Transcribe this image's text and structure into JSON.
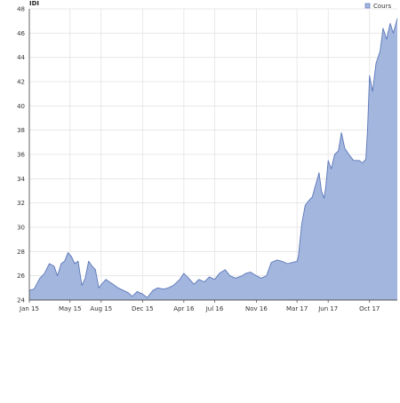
{
  "chart_data": {
    "type": "area",
    "title": "IDI",
    "legend": {
      "position": "top-right",
      "entries": [
        "Cours"
      ]
    },
    "grid": true,
    "colors": {
      "series": "#5b77b8",
      "fill": "#a3b6de",
      "grid": "#e3e3e3",
      "axis": "#555555"
    },
    "xlim": [
      "2015-01-01",
      "2017-12-22"
    ],
    "ylim": [
      24,
      48
    ],
    "x_ticks": [
      "2015-01-01",
      "2015-05-01",
      "2015-08-01",
      "2015-12-01",
      "2016-04-01",
      "2016-07-01",
      "2016-11-01",
      "2017-03-01",
      "2017-06-01",
      "2017-10-01"
    ],
    "x_tick_labels": [
      "Jan 15",
      "May 15",
      "Aug 15",
      "Dec 15",
      "Apr 16",
      "Jul 16",
      "Nov 16",
      "Mar 17",
      "Jun 17",
      "Oct 17"
    ],
    "y_ticks": [
      24,
      26,
      28,
      30,
      32,
      34,
      36,
      38,
      40,
      42,
      44,
      46,
      48
    ],
    "y_tick_labels": [
      "24",
      "26",
      "28",
      "30",
      "32",
      "34",
      "36",
      "38",
      "40",
      "42",
      "44",
      "46",
      "48"
    ],
    "series": [
      {
        "name": "Cours",
        "x": [
          "2015-01-01",
          "2015-01-15",
          "2015-02-01",
          "2015-02-15",
          "2015-03-01",
          "2015-03-15",
          "2015-03-25",
          "2015-04-05",
          "2015-04-15",
          "2015-04-25",
          "2015-05-05",
          "2015-05-15",
          "2015-05-25",
          "2015-06-05",
          "2015-06-15",
          "2015-06-25",
          "2015-07-05",
          "2015-07-15",
          "2015-07-25",
          "2015-08-05",
          "2015-08-15",
          "2015-08-25",
          "2015-09-05",
          "2015-09-20",
          "2015-10-05",
          "2015-10-20",
          "2015-11-01",
          "2015-11-15",
          "2015-12-01",
          "2015-12-15",
          "2016-01-01",
          "2016-01-15",
          "2016-02-01",
          "2016-02-15",
          "2016-03-01",
          "2016-03-20",
          "2016-04-01",
          "2016-04-15",
          "2016-05-01",
          "2016-05-15",
          "2016-06-01",
          "2016-06-15",
          "2016-07-01",
          "2016-07-15",
          "2016-08-01",
          "2016-08-15",
          "2016-09-01",
          "2016-09-10",
          "2016-09-20",
          "2016-10-01",
          "2016-10-15",
          "2016-11-01",
          "2016-11-15",
          "2016-12-01",
          "2016-12-15",
          "2017-01-01",
          "2017-01-15",
          "2017-02-01",
          "2017-02-15",
          "2017-03-01",
          "2017-03-05",
          "2017-03-15",
          "2017-03-25",
          "2017-04-05",
          "2017-04-15",
          "2017-04-25",
          "2017-05-05",
          "2017-05-12",
          "2017-05-20",
          "2017-05-25",
          "2017-06-01",
          "2017-06-10",
          "2017-06-20",
          "2017-07-01",
          "2017-07-10",
          "2017-07-20",
          "2017-08-01",
          "2017-08-15",
          "2017-09-01",
          "2017-09-10",
          "2017-09-20",
          "2017-09-25",
          "2017-10-01",
          "2017-10-10",
          "2017-10-20",
          "2017-11-01",
          "2017-11-10",
          "2017-11-20",
          "2017-12-01",
          "2017-12-10",
          "2017-12-22"
        ],
        "values": [
          24.8,
          24.9,
          25.8,
          26.2,
          27.0,
          26.8,
          26.0,
          27.0,
          27.2,
          27.9,
          27.6,
          27.0,
          27.2,
          25.2,
          25.8,
          27.2,
          26.8,
          26.5,
          25.0,
          25.4,
          25.7,
          25.5,
          25.3,
          25.0,
          24.8,
          24.6,
          24.3,
          24.7,
          24.5,
          24.2,
          24.8,
          25.0,
          24.9,
          25.0,
          25.2,
          25.7,
          26.2,
          25.8,
          25.3,
          25.7,
          25.5,
          25.9,
          25.7,
          26.2,
          26.5,
          26.0,
          25.8,
          25.9,
          26.0,
          26.2,
          26.3,
          26.0,
          25.8,
          26.0,
          27.1,
          27.3,
          27.2,
          27.0,
          27.1,
          27.2,
          27.6,
          30.3,
          31.8,
          32.2,
          32.5,
          33.5,
          34.5,
          33.0,
          32.4,
          33.4,
          35.5,
          34.8,
          36.0,
          36.3,
          37.8,
          36.5,
          36.0,
          35.5,
          35.5,
          35.3,
          35.6,
          38.0,
          42.5,
          41.2,
          43.5,
          44.5,
          46.4,
          45.5,
          46.8,
          46.0,
          47.2
        ]
      }
    ]
  }
}
